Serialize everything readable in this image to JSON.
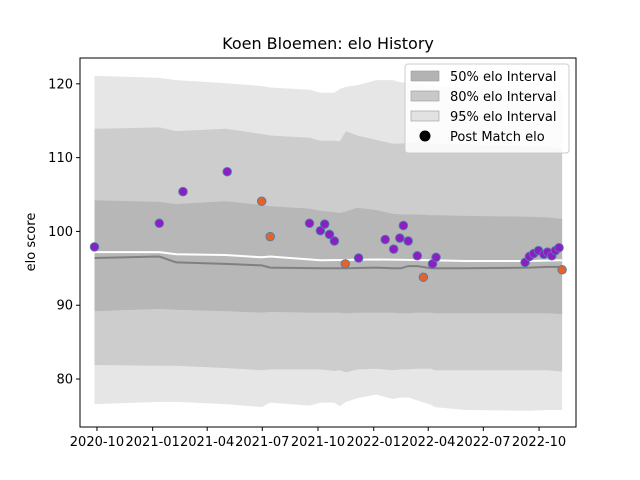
{
  "chart_data": {
    "type": "line",
    "title": "Koen Bloemen: elo History",
    "xlabel": "",
    "ylabel": "elo score",
    "xlim": [
      "2020-09-03",
      "2022-12-01"
    ],
    "ylim": [
      73.5,
      123.5
    ],
    "x_ticks": [
      "2020-10",
      "2021-01",
      "2021-04",
      "2021-07",
      "2021-10",
      "2022-01",
      "2022-04",
      "2022-07",
      "2022-10"
    ],
    "y_ticks": [
      80,
      90,
      100,
      110,
      120
    ],
    "grid": false,
    "legend_position": "top-right",
    "legend": [
      {
        "label": "50% elo Interval",
        "color": "#b3b3b3",
        "marker": "patch"
      },
      {
        "label": "80% elo Interval",
        "color": "#c8c8c8",
        "marker": "patch"
      },
      {
        "label": "95% elo Interval",
        "color": "#e2e2e2",
        "marker": "patch"
      },
      {
        "label": "Post Match elo",
        "color": "#000000",
        "marker": "circle"
      }
    ],
    "bands": {
      "x": [
        "2020-09-27",
        "2021-01-12",
        "2021-02-09",
        "2021-05-01",
        "2021-06-30",
        "2021-07-14",
        "2021-09-17",
        "2021-10-05",
        "2021-10-28",
        "2021-11-06",
        "2021-11-16",
        "2021-12-05",
        "2022-01-05",
        "2022-02-01",
        "2022-02-15",
        "2022-02-27",
        "2022-03-14",
        "2022-04-06",
        "2022-04-12",
        "2022-06-01",
        "2022-09-15",
        "2022-10-15",
        "2022-11-08"
      ],
      "p50": {
        "color": "#b3b3b3",
        "low": [
          89.2,
          89.5,
          89.4,
          89.2,
          89.0,
          89.1,
          89.0,
          89.0,
          89.0,
          89.0,
          88.9,
          89.0,
          89.0,
          89.0,
          88.9,
          88.9,
          89.0,
          89.0,
          88.9,
          88.9,
          88.9,
          88.9,
          88.8
        ],
        "high": [
          104.2,
          104.0,
          103.7,
          104.1,
          103.6,
          103.4,
          103.1,
          102.8,
          102.6,
          102.5,
          102.7,
          103.2,
          102.9,
          102.4,
          102.3,
          102.3,
          102.3,
          102.2,
          102.2,
          102.1,
          102.0,
          101.9,
          101.7
        ]
      },
      "p80": {
        "color": "#c8c8c8",
        "low": [
          81.9,
          81.8,
          81.8,
          81.5,
          81.2,
          81.3,
          81.3,
          81.3,
          81.1,
          81.2,
          80.9,
          81.3,
          81.4,
          81.2,
          81.3,
          81.3,
          81.4,
          81.4,
          81.2,
          81.2,
          81.2,
          81.2,
          81.0
        ],
        "high": [
          113.9,
          114.1,
          113.6,
          113.9,
          113.2,
          113.0,
          112.7,
          112.3,
          112.3,
          112.2,
          113.6,
          113.0,
          112.4,
          111.9,
          111.9,
          112.0,
          112.0,
          111.9,
          111.9,
          111.8,
          111.5,
          111.4,
          111.3
        ]
      },
      "p95": {
        "color": "#e2e2e2",
        "low": [
          76.6,
          76.9,
          76.9,
          76.6,
          76.2,
          76.8,
          76.4,
          76.8,
          76.8,
          76.3,
          76.9,
          77.4,
          77.9,
          77.3,
          77.5,
          77.5,
          77.1,
          76.5,
          76.2,
          75.8,
          75.7,
          75.8,
          75.8
        ],
        "high": [
          121.1,
          120.8,
          120.5,
          120.1,
          119.7,
          119.5,
          119.2,
          118.8,
          118.8,
          119.3,
          119.6,
          119.8,
          120.5,
          120.5,
          120.2,
          120.2,
          120.0,
          119.8,
          119.6,
          119.5,
          119.3,
          119.2,
          119.0
        ]
      }
    },
    "series": [
      {
        "color": "#ffffff",
        "x": [
          "2020-09-27",
          "2021-01-12",
          "2021-02-09",
          "2021-05-01",
          "2021-06-30",
          "2021-07-14",
          "2021-10-05",
          "2022-01-05",
          "2022-04-06",
          "2022-06-01",
          "2022-09-15",
          "2022-11-08"
        ],
        "values": [
          97.2,
          97.2,
          96.9,
          96.8,
          96.5,
          96.6,
          96.1,
          96.2,
          96.1,
          96.0,
          96.0,
          96.1
        ]
      },
      {
        "color": "#808080",
        "x": [
          "2020-09-27",
          "2021-01-12",
          "2021-02-09",
          "2021-05-01",
          "2021-06-30",
          "2021-07-14",
          "2021-10-05",
          "2021-11-16",
          "2022-01-05",
          "2022-02-01",
          "2022-02-15",
          "2022-02-27",
          "2022-03-14",
          "2022-04-06",
          "2022-04-12",
          "2022-06-01",
          "2022-09-15",
          "2022-10-15",
          "2022-11-08"
        ],
        "values": [
          96.4,
          96.6,
          95.8,
          95.6,
          95.4,
          95.1,
          95.0,
          95.0,
          95.1,
          95.0,
          95.0,
          95.3,
          95.3,
          95.0,
          95.0,
          95.0,
          95.1,
          95.2,
          95.2
        ]
      }
    ],
    "points": [
      {
        "x": "2020-09-27",
        "y": 97.9,
        "color": "#8b1fc4"
      },
      {
        "x": "2021-01-12",
        "y": 101.1,
        "color": "#8b1fc4"
      },
      {
        "x": "2021-02-20",
        "y": 105.4,
        "color": "#8b1fc4"
      },
      {
        "x": "2021-05-04",
        "y": 108.1,
        "color": "#8b1fc4"
      },
      {
        "x": "2021-06-30",
        "y": 104.1,
        "color": "#e4632d"
      },
      {
        "x": "2021-07-14",
        "y": 99.3,
        "color": "#e4632d"
      },
      {
        "x": "2021-09-17",
        "y": 101.1,
        "color": "#8b1fc4"
      },
      {
        "x": "2021-10-05",
        "y": 100.1,
        "color": "#8b1fc4"
      },
      {
        "x": "2021-10-12",
        "y": 101.0,
        "color": "#8b1fc4"
      },
      {
        "x": "2021-10-20",
        "y": 99.6,
        "color": "#8b1fc4"
      },
      {
        "x": "2021-10-28",
        "y": 98.7,
        "color": "#8b1fc4"
      },
      {
        "x": "2021-11-15",
        "y": 95.6,
        "color": "#e4632d"
      },
      {
        "x": "2021-12-07",
        "y": 96.4,
        "color": "#8b1fc4"
      },
      {
        "x": "2022-01-20",
        "y": 98.9,
        "color": "#8b1fc4"
      },
      {
        "x": "2022-02-03",
        "y": 97.6,
        "color": "#8b1fc4"
      },
      {
        "x": "2022-02-13",
        "y": 99.1,
        "color": "#8b1fc4"
      },
      {
        "x": "2022-02-19",
        "y": 100.8,
        "color": "#8b1fc4"
      },
      {
        "x": "2022-02-27",
        "y": 98.7,
        "color": "#8b1fc4"
      },
      {
        "x": "2022-03-14",
        "y": 96.7,
        "color": "#8b1fc4"
      },
      {
        "x": "2022-03-24",
        "y": 93.8,
        "color": "#e4632d"
      },
      {
        "x": "2022-04-08",
        "y": 95.6,
        "color": "#8b1fc4"
      },
      {
        "x": "2022-04-14",
        "y": 96.5,
        "color": "#8b1fc4"
      },
      {
        "x": "2022-09-08",
        "y": 95.8,
        "color": "#8b1fc4"
      },
      {
        "x": "2022-09-15",
        "y": 96.6,
        "color": "#8b1fc4"
      },
      {
        "x": "2022-09-22",
        "y": 97.0,
        "color": "#8b1fc4"
      },
      {
        "x": "2022-09-30",
        "y": 97.4,
        "color": "#8b1fc4"
      },
      {
        "x": "2022-10-09",
        "y": 96.9,
        "color": "#8b1fc4"
      },
      {
        "x": "2022-10-15",
        "y": 97.2,
        "color": "#8b1fc4"
      },
      {
        "x": "2022-10-22",
        "y": 96.7,
        "color": "#8b1fc4"
      },
      {
        "x": "2022-10-28",
        "y": 97.4,
        "color": "#8b1fc4"
      },
      {
        "x": "2022-11-03",
        "y": 97.8,
        "color": "#8b1fc4"
      },
      {
        "x": "2022-11-08",
        "y": 94.8,
        "color": "#e4632d"
      }
    ],
    "point_edge_color": "#4f7ea8"
  }
}
